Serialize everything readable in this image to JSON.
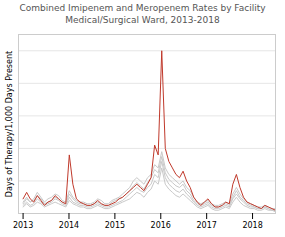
{
  "chart_data": {
    "type": "line",
    "title": "Combined Imipenem and Meropenem Rates by Facility\nMedical/Surgical Ward, 2013-2018",
    "ylabel": "Days of Therapy/1,000 Days Present",
    "x": [
      2013,
      2013.077465,
      2013.15493,
      2013.232394,
      2013.309859,
      2013.387324,
      2013.464789,
      2013.542254,
      2013.619718,
      2013.697183,
      2013.774648,
      2013.852113,
      2013.929577,
      2014.007042,
      2014.084507,
      2014.161972,
      2014.239437,
      2014.316901,
      2014.394366,
      2014.471831,
      2014.549296,
      2014.626761,
      2014.704225,
      2014.78169,
      2014.859155,
      2014.93662,
      2015.014085,
      2015.091549,
      2015.169014,
      2015.246479,
      2015.323944,
      2015.401408,
      2015.478873,
      2015.556338,
      2015.633803,
      2015.711268,
      2015.788732,
      2015.866197,
      2015.943662,
      2016.021127,
      2016.098592,
      2016.176056,
      2016.253521,
      2016.330986,
      2016.408451,
      2016.485915,
      2016.56338,
      2016.640845,
      2016.71831,
      2016.795775,
      2016.873239,
      2016.950704,
      2017.028169,
      2017.105634,
      2017.183099,
      2017.260563,
      2017.338028,
      2017.415493,
      2017.492958,
      2017.570423,
      2017.647887,
      2017.725352,
      2017.802817,
      2017.880282,
      2017.957746,
      2018.035211,
      2018.112676,
      2018.190141,
      2018.267606,
      2018.34507,
      2018.422535,
      2018.5
    ],
    "series": [
      {
        "color": "#c9c9c9",
        "values": [
          7,
          10,
          7,
          9,
          13,
          10,
          7,
          9,
          10,
          12,
          11,
          8,
          7,
          14,
          10,
          8,
          7,
          7,
          6,
          6,
          7,
          9,
          8,
          6,
          6,
          8,
          9,
          10,
          12,
          14,
          16,
          20,
          22,
          20,
          18,
          22,
          24,
          30,
          28,
          38,
          28,
          24,
          22,
          20,
          18,
          20,
          16,
          14,
          10,
          7,
          6,
          7,
          8,
          6,
          5,
          5,
          6,
          7,
          6,
          12,
          16,
          12,
          9,
          7,
          6,
          5,
          4,
          4,
          5,
          4,
          3,
          3
        ]
      },
      {
        "color": "#c9c9c9",
        "values": [
          5,
          7,
          5,
          6,
          9,
          7,
          5,
          6,
          7,
          9,
          8,
          6,
          5,
          10,
          7,
          6,
          5,
          5,
          4,
          4,
          5,
          6,
          5,
          4,
          4,
          5,
          6,
          7,
          8,
          10,
          12,
          14,
          16,
          14,
          13,
          16,
          18,
          24,
          22,
          32,
          22,
          18,
          16,
          14,
          13,
          15,
          12,
          10,
          7,
          5,
          4,
          5,
          6,
          4,
          3,
          3,
          4,
          5,
          4,
          9,
          12,
          9,
          7,
          5,
          4,
          4,
          3,
          3,
          4,
          3,
          2,
          2
        ]
      },
      {
        "color": "#c9c9c9",
        "values": [
          4,
          6,
          4,
          5,
          7,
          6,
          4,
          5,
          6,
          7,
          6,
          5,
          4,
          8,
          6,
          5,
          4,
          4,
          3,
          3,
          4,
          5,
          4,
          3,
          3,
          4,
          5,
          6,
          7,
          8,
          9,
          11,
          13,
          12,
          10,
          13,
          15,
          20,
          18,
          28,
          18,
          15,
          13,
          11,
          10,
          12,
          10,
          8,
          6,
          4,
          3,
          4,
          5,
          3,
          2,
          2,
          3,
          4,
          3,
          7,
          10,
          7,
          5,
          4,
          3,
          3,
          2,
          2,
          3,
          2,
          2,
          1
        ]
      },
      {
        "color": "#c9c9c9",
        "values": [
          6,
          9,
          7,
          8,
          11,
          9,
          6,
          7,
          8,
          10,
          9,
          7,
          6,
          12,
          9,
          7,
          6,
          6,
          5,
          5,
          6,
          7,
          6,
          5,
          5,
          7,
          8,
          9,
          10,
          12,
          14,
          17,
          19,
          17,
          15,
          19,
          22,
          27,
          25,
          35,
          25,
          21,
          19,
          17,
          16,
          18,
          14,
          12,
          8,
          6,
          5,
          6,
          7,
          5,
          4,
          4,
          5,
          6,
          5,
          10,
          14,
          10,
          8,
          6,
          5,
          4,
          3,
          3,
          4,
          3,
          2,
          2
        ]
      },
      {
        "color": "#c0392b",
        "values": [
          9,
          13,
          9,
          7,
          11,
          8,
          5,
          7,
          8,
          11,
          9,
          7,
          6,
          36,
          18,
          9,
          7,
          6,
          5,
          5,
          6,
          8,
          6,
          5,
          5,
          6,
          7,
          9,
          10,
          12,
          14,
          16,
          18,
          16,
          14,
          18,
          22,
          42,
          36,
          100,
          40,
          32,
          28,
          24,
          22,
          26,
          20,
          16,
          10,
          7,
          5,
          7,
          9,
          6,
          4,
          4,
          5,
          7,
          6,
          18,
          24,
          16,
          10,
          7,
          6,
          5,
          4,
          3,
          5,
          4,
          3,
          2
        ]
      }
    ],
    "xlim": [
      2012.9,
      2018.5
    ],
    "xticks": [
      2013,
      2014,
      2015,
      2016,
      2017,
      2018
    ],
    "ylim": [
      0,
      110
    ],
    "yticks": [
      20,
      40,
      60,
      80,
      100
    ],
    "grid": true,
    "tick_labels": "x"
  }
}
